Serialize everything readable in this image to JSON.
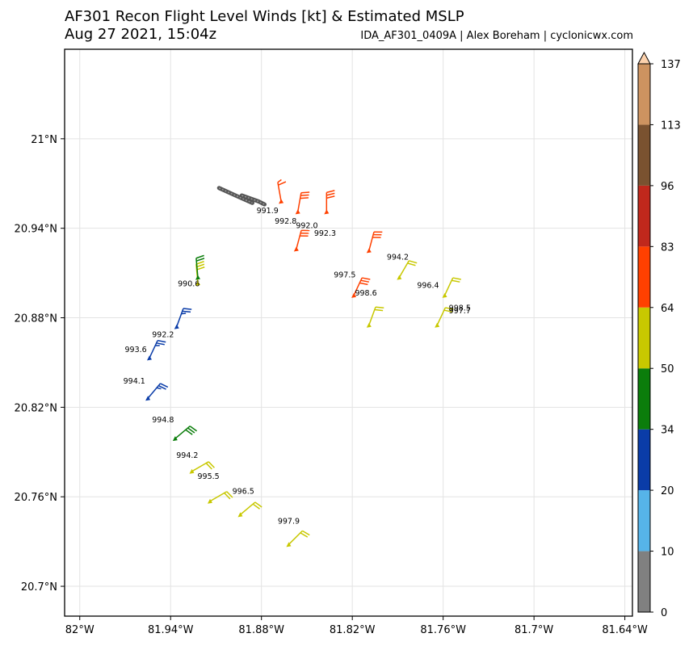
{
  "header": {
    "title": "AF301 Recon Flight Level Winds [kt] & Estimated MSLP",
    "subtitle": "Aug 27 2021, 15:04z",
    "credit": "IDA_AF301_0409A | Alex Boreham | cyclonicwx.com"
  },
  "chart_data": {
    "type": "scatter",
    "title": "AF301 Recon Flight Level Winds [kt] & Estimated MSLP",
    "subtitle": "Aug 27 2021, 15:04z",
    "xlim": [
      -82.01,
      -81.635
    ],
    "ylim": [
      20.68,
      21.06
    ],
    "x_ticks": [
      -82.0,
      -81.94,
      -81.88,
      -81.82,
      -81.76,
      -81.7,
      -81.64
    ],
    "x_tick_labels": [
      "82°W",
      "81.94°W",
      "81.88°W",
      "81.82°W",
      "81.76°W",
      "81.7°W",
      "81.64°W"
    ],
    "y_ticks": [
      21.0,
      20.94,
      20.88,
      20.82,
      20.76,
      20.7
    ],
    "y_tick_labels": [
      "21°N",
      "20.94°N",
      "20.88°N",
      "20.82°N",
      "20.76°N",
      "20.7°N"
    ],
    "grid": true,
    "colorbar": {
      "levels": [
        0,
        10,
        20,
        34,
        50,
        64,
        83,
        96,
        113,
        137
      ],
      "colors": [
        "#808080",
        "#56b4e9",
        "#0a3ca8",
        "#0b7d0b",
        "#c8c800",
        "#ff4000",
        "#c0281c",
        "#7a5230",
        "#cd9360"
      ]
    },
    "island_segments": [
      [
        [
          -81.908,
          20.967
        ],
        [
          -81.895,
          20.961
        ],
        [
          -81.886,
          20.957
        ]
      ],
      [
        [
          -81.893,
          20.962
        ],
        [
          -81.882,
          20.958
        ],
        [
          -81.878,
          20.956
        ]
      ]
    ],
    "observations": [
      {
        "lon": -81.867,
        "lat": 20.958,
        "color": "#ff4000",
        "dir": 350,
        "feathers": [
          "half",
          "full"
        ],
        "flag": false
      },
      {
        "lon": -81.856,
        "lat": 20.951,
        "color": "#ff4000",
        "dir": 10,
        "feathers": [
          "full",
          "full",
          "full"
        ],
        "flag": false
      },
      {
        "lon": -81.837,
        "lat": 20.951,
        "color": "#ff4000",
        "dir": 0,
        "feathers": [
          "full",
          "full",
          "full"
        ],
        "flag": false
      },
      {
        "lon": -81.857,
        "lat": 20.926,
        "color": "#ff4000",
        "dir": 15,
        "feathers": [
          "full",
          "full",
          "full"
        ],
        "flag": false
      },
      {
        "lon": -81.809,
        "lat": 20.925,
        "color": "#ff4000",
        "dir": 15,
        "feathers": [
          "full",
          "full",
          "full"
        ],
        "flag": false
      },
      {
        "lon": -81.819,
        "lat": 20.895,
        "color": "#ff4000",
        "dir": 25,
        "feathers": [
          "full",
          "full",
          "full"
        ],
        "flag": false
      },
      {
        "lon": -81.789,
        "lat": 20.907,
        "color": "#c8c800",
        "dir": 30,
        "feathers": [
          "full",
          "full"
        ],
        "flag": false
      },
      {
        "lon": -81.759,
        "lat": 20.895,
        "color": "#c8c800",
        "dir": 25,
        "feathers": [
          "full",
          "full"
        ],
        "flag": false
      },
      {
        "lon": -81.809,
        "lat": 20.875,
        "color": "#c8c800",
        "dir": 20,
        "feathers": [
          "full",
          "full"
        ],
        "flag": false
      },
      {
        "lon": -81.764,
        "lat": 20.875,
        "color": "#c8c800",
        "dir": 25,
        "feathers": [
          "full",
          "full"
        ],
        "flag": false
      },
      {
        "lon": -81.922,
        "lat": 20.903,
        "color": "#c8c800",
        "dir": 355,
        "feathers": [
          "full",
          "full",
          "full"
        ],
        "flag": false
      },
      {
        "lon": -81.922,
        "lat": 20.907,
        "color": "#0b7d0b",
        "dir": 355,
        "feathers": [
          "full",
          "full"
        ],
        "flag": false
      },
      {
        "lon": -81.936,
        "lat": 20.874,
        "color": "#0a3ca8",
        "dir": 20,
        "feathers": [
          "full",
          "full",
          "half"
        ],
        "flag": false
      },
      {
        "lon": -81.954,
        "lat": 20.853,
        "color": "#0a3ca8",
        "dir": 25,
        "feathers": [
          "full",
          "full",
          "half"
        ],
        "flag": false
      },
      {
        "lon": -81.955,
        "lat": 20.826,
        "color": "#0a3ca8",
        "dir": 40,
        "feathers": [
          "full",
          "full",
          "half"
        ],
        "flag": false
      },
      {
        "lon": -81.937,
        "lat": 20.799,
        "color": "#0b7d0b",
        "dir": 50,
        "feathers": [
          "full",
          "full",
          "full"
        ],
        "flag": false
      },
      {
        "lon": -81.926,
        "lat": 20.777,
        "color": "#c8c800",
        "dir": 60,
        "feathers": [
          "full",
          "full"
        ],
        "flag": false
      },
      {
        "lon": -81.914,
        "lat": 20.757,
        "color": "#c8c800",
        "dir": 60,
        "feathers": [
          "full",
          "full"
        ],
        "flag": false
      },
      {
        "lon": -81.894,
        "lat": 20.748,
        "color": "#c8c800",
        "dir": 50,
        "feathers": [
          "full",
          "full"
        ],
        "flag": false
      },
      {
        "lon": -81.862,
        "lat": 20.728,
        "color": "#c8c800",
        "dir": 45,
        "feathers": [
          "full",
          "full"
        ],
        "flag": false
      }
    ],
    "pressure_labels": [
      {
        "lon": -81.876,
        "lat": 20.95,
        "text": "991.9"
      },
      {
        "lon": -81.864,
        "lat": 20.943,
        "text": "992.8"
      },
      {
        "lon": -81.85,
        "lat": 20.94,
        "text": "992.0"
      },
      {
        "lon": -81.838,
        "lat": 20.935,
        "text": "992.3"
      },
      {
        "lon": -81.79,
        "lat": 20.919,
        "text": "994.2"
      },
      {
        "lon": -81.825,
        "lat": 20.907,
        "text": "997.5"
      },
      {
        "lon": -81.811,
        "lat": 20.895,
        "text": "998.6"
      },
      {
        "lon": -81.77,
        "lat": 20.9,
        "text": "996.4"
      },
      {
        "lon": -81.749,
        "lat": 20.885,
        "text": "998.5"
      },
      {
        "lon": -81.749,
        "lat": 20.883,
        "text": "997.7"
      },
      {
        "lon": -81.928,
        "lat": 20.901,
        "text": "990.6"
      },
      {
        "lon": -81.945,
        "lat": 20.867,
        "text": "992.2"
      },
      {
        "lon": -81.963,
        "lat": 20.857,
        "text": "993.6"
      },
      {
        "lon": -81.964,
        "lat": 20.836,
        "text": "994.1"
      },
      {
        "lon": -81.945,
        "lat": 20.81,
        "text": "994.8"
      },
      {
        "lon": -81.929,
        "lat": 20.786,
        "text": "994.2"
      },
      {
        "lon": -81.915,
        "lat": 20.772,
        "text": "995.5"
      },
      {
        "lon": -81.892,
        "lat": 20.762,
        "text": "996.5"
      },
      {
        "lon": -81.862,
        "lat": 20.742,
        "text": "997.9"
      }
    ]
  }
}
